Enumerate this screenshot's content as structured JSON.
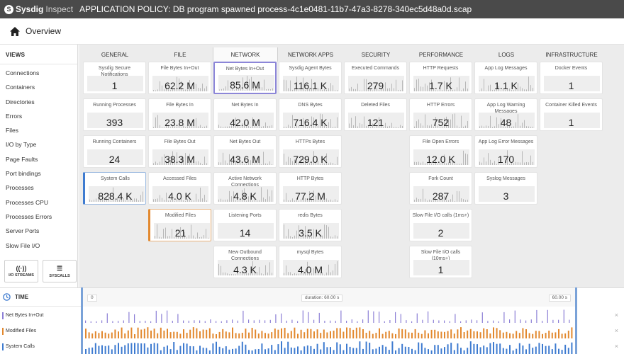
{
  "titlebar": {
    "logo_mark": "S",
    "logo_brand": "Sysdig",
    "logo_sub": "Inspect",
    "title": "APPLICATION POLICY: DB program spawned process-4c1e0481-11b7-47a3-8278-340ec5d48a0d.scap"
  },
  "subheader": {
    "icon": "home-icon",
    "title": "Overview"
  },
  "sidebar": {
    "title": "VIEWS",
    "items": [
      "Connections",
      "Containers",
      "Directories",
      "Errors",
      "Files",
      "I/O by Type",
      "Page Faults",
      "Port bindings",
      "Processes",
      "Processes CPU",
      "Processes Errors",
      "Server Ports",
      "Slow File I/O"
    ],
    "buttons": [
      {
        "icon": "io-streams-icon",
        "glyph": "((·))",
        "label": "I/O STREAMS"
      },
      {
        "icon": "syscalls-icon",
        "glyph": "☰",
        "label": "SYSCALLS"
      }
    ]
  },
  "columns": [
    {
      "title": "GENERAL",
      "highlight": false,
      "tiles": [
        {
          "label": "Sysdig Secure Notifications",
          "value": "1",
          "spark": false,
          "sel": ""
        },
        {
          "label": "Running Processes",
          "value": "393",
          "spark": false,
          "sel": ""
        },
        {
          "label": "Running Containers",
          "value": "24",
          "spark": false,
          "sel": ""
        },
        {
          "label": "System Calls",
          "value": "828.4 K",
          "spark": true,
          "sel": "blue"
        }
      ]
    },
    {
      "title": "FILE",
      "highlight": false,
      "tiles": [
        {
          "label": "File Bytes In+Out",
          "value": "62.2 M",
          "spark": true,
          "sel": ""
        },
        {
          "label": "File Bytes In",
          "value": "23.8 M",
          "spark": true,
          "sel": ""
        },
        {
          "label": "File Bytes Out",
          "value": "38.3 M",
          "spark": true,
          "sel": ""
        },
        {
          "label": "Accessed Files",
          "value": "4.0 K",
          "spark": true,
          "sel": ""
        },
        {
          "label": "Modified Files",
          "value": "21",
          "spark": true,
          "sel": "orange"
        }
      ]
    },
    {
      "title": "NETWORK",
      "highlight": true,
      "tiles": [
        {
          "label": "Net Bytes In+Out",
          "value": "85.6 M",
          "spark": true,
          "sel": "purple"
        },
        {
          "label": "Net Bytes In",
          "value": "42.0 M",
          "spark": true,
          "sel": ""
        },
        {
          "label": "Net Bytes Out",
          "value": "43.6 M",
          "spark": true,
          "sel": ""
        },
        {
          "label": "Active Network Connections",
          "value": "4.8 K",
          "spark": true,
          "sel": ""
        },
        {
          "label": "Listening Ports",
          "value": "14",
          "spark": false,
          "sel": ""
        },
        {
          "label": "New Outbound Connections",
          "value": "4.3 K",
          "spark": true,
          "sel": ""
        }
      ]
    },
    {
      "title": "NETWORK APPS",
      "highlight": false,
      "tiles": [
        {
          "label": "Sysdig Agent Bytes",
          "value": "116.1 K",
          "spark": true,
          "sel": ""
        },
        {
          "label": "DNS Bytes",
          "value": "716.4 K",
          "spark": true,
          "sel": ""
        },
        {
          "label": "HTTPs Bytes",
          "value": "729.0 K",
          "spark": true,
          "sel": ""
        },
        {
          "label": "HTTP Bytes",
          "value": "77.2 M",
          "spark": true,
          "sel": ""
        },
        {
          "label": "redis Bytes",
          "value": "3.5 K",
          "spark": true,
          "sel": ""
        },
        {
          "label": "mysql Bytes",
          "value": "4.0 M",
          "spark": true,
          "sel": ""
        }
      ]
    },
    {
      "title": "SECURITY",
      "highlight": false,
      "tiles": [
        {
          "label": "Executed Commands",
          "value": "279",
          "spark": true,
          "sel": ""
        },
        {
          "label": "Deleted Files",
          "value": "121",
          "spark": true,
          "sel": ""
        }
      ]
    },
    {
      "title": "PERFORMANCE",
      "highlight": false,
      "tiles": [
        {
          "label": "HTTP Requests",
          "value": "1.7 K",
          "spark": true,
          "sel": ""
        },
        {
          "label": "HTTP Errors",
          "value": "752",
          "spark": true,
          "sel": ""
        },
        {
          "label": "File Open Errors",
          "value": "12.0 K",
          "spark": true,
          "sel": ""
        },
        {
          "label": "Fork Count",
          "value": "287",
          "spark": true,
          "sel": ""
        },
        {
          "label": "Slow File I/O calls (1ms+)",
          "value": "2",
          "spark": false,
          "sel": ""
        },
        {
          "label": "Slow File I/O calls (10ms+)",
          "value": "1",
          "spark": false,
          "sel": ""
        }
      ]
    },
    {
      "title": "LOGS",
      "highlight": false,
      "tiles": [
        {
          "label": "App Log Messages",
          "value": "1.1 K",
          "spark": true,
          "sel": ""
        },
        {
          "label": "App Log Warning Messages",
          "value": "48",
          "spark": true,
          "sel": ""
        },
        {
          "label": "App Log Error Messages",
          "value": "170",
          "spark": true,
          "sel": ""
        },
        {
          "label": "Syslog Messages",
          "value": "3",
          "spark": false,
          "sel": ""
        }
      ]
    },
    {
      "title": "INFRASTRUCTURE",
      "highlight": false,
      "tiles": [
        {
          "label": "Docker Events",
          "value": "1",
          "spark": false,
          "sel": ""
        },
        {
          "label": "Container Killed Events",
          "value": "1",
          "spark": false,
          "sel": ""
        }
      ]
    }
  ],
  "time": {
    "icon": "clock-icon",
    "title": "TIME",
    "start": "0",
    "duration": "duration: 60.00 s",
    "end": "60.00 s",
    "series": [
      {
        "name": "Net Bytes In+Out",
        "color": "#8c7fd6"
      },
      {
        "name": "Modified Files",
        "color": "#e2882e"
      },
      {
        "name": "System Calls",
        "color": "#3e7bd0"
      }
    ],
    "close_glyph": "×"
  },
  "colors": {
    "accent": "#3e7bd0",
    "titlebar": "#4a4a4a"
  }
}
